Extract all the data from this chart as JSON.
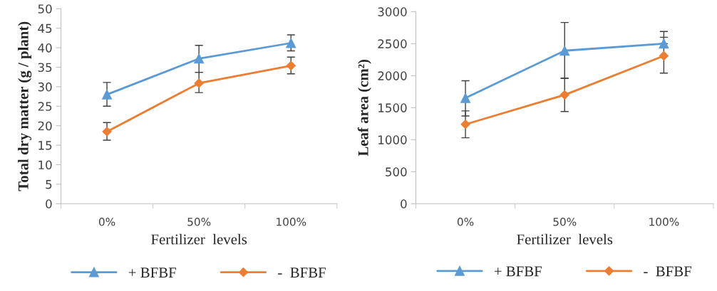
{
  "chart_data": [
    {
      "type": "line",
      "categories": [
        "0%",
        "50%",
        "100%"
      ],
      "xlabel": "Fertilizer  levels",
      "ylabel": "Total dry matter (g / plant)",
      "ylim": [
        0,
        50
      ],
      "yticks": [
        0,
        5,
        10,
        15,
        20,
        25,
        30,
        35,
        40,
        45,
        50
      ],
      "grid": false,
      "legend": "bottom",
      "series": [
        {
          "name": "+ BFBF",
          "color": "#5b9bd5",
          "marker": "triangle",
          "values": [
            28,
            37.2,
            41.2
          ],
          "errors": [
            [
              25,
              31.1
            ],
            [
              33.7,
              40.6
            ],
            [
              39.2,
              43.3
            ]
          ]
        },
        {
          "name": "-  BFBF",
          "color": "#ed7d31",
          "marker": "diamond",
          "values": [
            18.5,
            30.9,
            35.4
          ],
          "errors": [
            [
              16.3,
              20.8
            ],
            [
              28.5,
              33.7
            ],
            [
              33.3,
              37.6
            ]
          ]
        }
      ]
    },
    {
      "type": "line",
      "categories": [
        "0%",
        "50%",
        "100%"
      ],
      "xlabel": "Fertilizer  levels",
      "ylabel": "Leaf area (cm²)",
      "ylim": [
        0,
        3000
      ],
      "yticks": [
        0,
        500,
        1000,
        1500,
        2000,
        2500,
        3000
      ],
      "grid": false,
      "legend": "bottom",
      "series": [
        {
          "name": "+ BFBF",
          "color": "#5b9bd5",
          "marker": "triangle",
          "values": [
            1650,
            2390,
            2500
          ],
          "errors": [
            [
              1370,
              1920
            ],
            [
              1960,
              2830
            ],
            [
              2500,
              2690
            ]
          ]
        },
        {
          "name": "-  BFBF",
          "color": "#ed7d31",
          "marker": "diamond",
          "values": [
            1240,
            1700,
            2310
          ],
          "errors": [
            [
              1030,
              1450
            ],
            [
              1440,
              1960
            ],
            [
              2040,
              2600
            ]
          ]
        }
      ]
    }
  ]
}
